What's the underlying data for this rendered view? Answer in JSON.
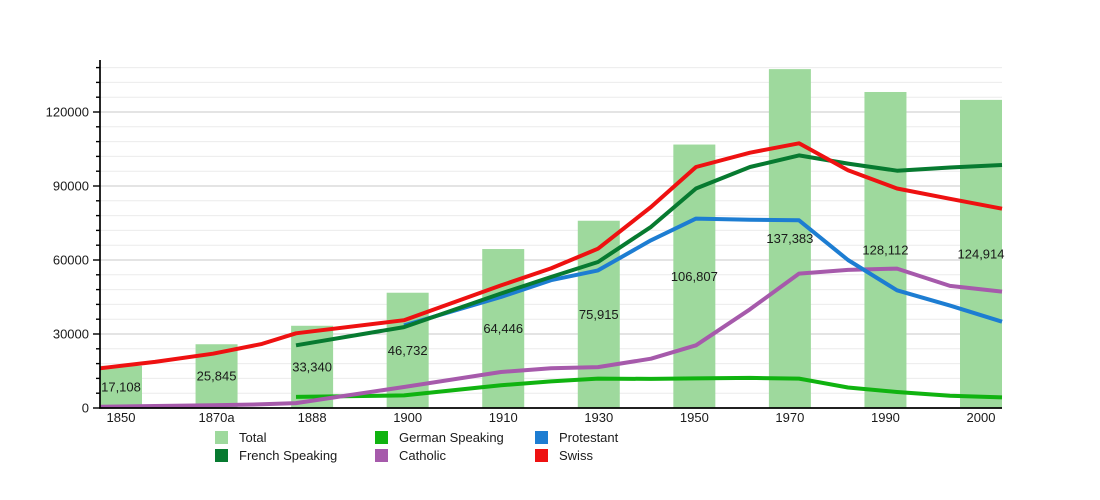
{
  "page": {
    "background": "#ffffff"
  },
  "chart_data": {
    "type": "bar+line",
    "title": "",
    "xlabel": "",
    "ylabel": "",
    "categories": [
      "1850",
      "1870a",
      "1888",
      "1900",
      "1910",
      "1930",
      "1950",
      "1970",
      "1990",
      "2000"
    ],
    "y_axis": {
      "ticks": [
        0,
        30000,
        60000,
        90000,
        120000
      ],
      "tick_labels": [
        "0",
        "30000",
        "60000",
        "90000",
        "120000"
      ],
      "minor_step": 6000,
      "ylim": [
        0,
        141000
      ],
      "grid": "horizontal"
    },
    "bar_series": {
      "name": "Total",
      "color": "#9ed99d",
      "values": [
        17108,
        25845,
        33340,
        46732,
        64446,
        75915,
        106807,
        137383,
        128112,
        124914
      ],
      "labels": [
        "17,108",
        "25,845",
        "33,340",
        "46,732",
        "64,446",
        "75,915",
        "106,807",
        "137,383",
        "128,112",
        "124,914"
      ]
    },
    "line_series": [
      {
        "name": "German Speaking",
        "color": "#10b310",
        "points": [
          [
            1888,
            4500
          ],
          [
            1900,
            5100
          ],
          [
            1910,
            9200
          ],
          [
            1920,
            10800
          ],
          [
            1930,
            11900
          ],
          [
            1941,
            11800
          ],
          [
            1950,
            12000
          ],
          [
            1960,
            12200
          ],
          [
            1970,
            11900
          ],
          [
            1980,
            8300
          ],
          [
            1990,
            6500
          ],
          [
            2000,
            5000
          ],
          [
            2005,
            4300
          ]
        ]
      },
      {
        "name": "Catholic",
        "color": "#a65aab",
        "points": [
          [
            1850,
            500
          ],
          [
            1860,
            800
          ],
          [
            1870,
            1100
          ],
          [
            1880,
            1500
          ],
          [
            1888,
            2000
          ],
          [
            1900,
            8500
          ],
          [
            1910,
            14600
          ],
          [
            1920,
            16100
          ],
          [
            1930,
            16600
          ],
          [
            1941,
            20000
          ],
          [
            1950,
            25400
          ],
          [
            1960,
            40000
          ],
          [
            1970,
            54500
          ],
          [
            1980,
            56000
          ],
          [
            1990,
            56500
          ],
          [
            2000,
            49500
          ],
          [
            2005,
            47200
          ]
        ]
      },
      {
        "name": "Protestant",
        "color": "#1d7dd2",
        "points": [
          [
            1900,
            33500
          ],
          [
            1910,
            45000
          ],
          [
            1920,
            51800
          ],
          [
            1930,
            55800
          ],
          [
            1941,
            68000
          ],
          [
            1950,
            76800
          ],
          [
            1960,
            76300
          ],
          [
            1970,
            76100
          ],
          [
            1980,
            60000
          ],
          [
            1990,
            47700
          ],
          [
            2000,
            41500
          ],
          [
            2005,
            35000
          ]
        ]
      },
      {
        "name": "French Speaking",
        "color": "#077a30",
        "points": [
          [
            1888,
            25400
          ],
          [
            1900,
            32800
          ],
          [
            1910,
            46400
          ],
          [
            1920,
            53100
          ],
          [
            1930,
            59200
          ],
          [
            1941,
            73400
          ],
          [
            1950,
            89000
          ],
          [
            1960,
            97700
          ],
          [
            1970,
            102400
          ],
          [
            1980,
            99100
          ],
          [
            1990,
            96200
          ],
          [
            2000,
            97500
          ],
          [
            2005,
            98500
          ]
        ]
      },
      {
        "name": "Swiss",
        "color": "#ee1111",
        "points": [
          [
            1850,
            16100
          ],
          [
            1860,
            18700
          ],
          [
            1870,
            22000
          ],
          [
            1880,
            26000
          ],
          [
            1888,
            30300
          ],
          [
            1900,
            35600
          ],
          [
            1910,
            49700
          ],
          [
            1920,
            56600
          ],
          [
            1930,
            64600
          ],
          [
            1941,
            81500
          ],
          [
            1950,
            97700
          ],
          [
            1960,
            103500
          ],
          [
            1970,
            107300
          ],
          [
            1980,
            96400
          ],
          [
            1990,
            89000
          ],
          [
            2000,
            84800
          ],
          [
            2005,
            80800
          ]
        ]
      }
    ],
    "legend_position": "bottom"
  },
  "legend": {
    "items": [
      {
        "label": "Total",
        "color": "#9ed99d"
      },
      {
        "label": "German Speaking",
        "color": "#10b310"
      },
      {
        "label": "Protestant",
        "color": "#1d7dd2"
      },
      {
        "label": "French Speaking",
        "color": "#077a30"
      },
      {
        "label": "Catholic",
        "color": "#a65aab"
      },
      {
        "label": "Swiss",
        "color": "#ee1111"
      }
    ]
  },
  "colors": {
    "axis": "#000000",
    "major_grid": "#c9c9c9",
    "minor_grid": "#ececec",
    "text": "#1a1a1a"
  }
}
